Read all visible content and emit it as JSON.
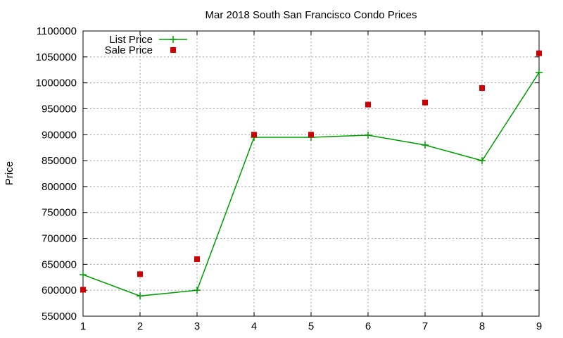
{
  "chart_data": {
    "type": "line",
    "title": "Mar 2018 South San Francisco Condo Prices",
    "xlabel": "",
    "ylabel": "Price",
    "xlim": [
      1,
      9
    ],
    "ylim": [
      550000,
      1100000
    ],
    "x_ticks": [
      "1",
      "2",
      "3",
      "4",
      "5",
      "6",
      "7",
      "8",
      "9"
    ],
    "y_ticks": [
      "550000",
      "600000",
      "650000",
      "700000",
      "750000",
      "800000",
      "850000",
      "900000",
      "950000",
      "1000000",
      "1050000",
      "1100000"
    ],
    "grid": true,
    "legend_position": "top-left",
    "series": [
      {
        "name": "List Price",
        "style": "lines+points",
        "marker": "plus",
        "color": "#009900",
        "x": [
          1,
          2,
          3,
          4,
          5,
          6,
          7,
          8,
          9
        ],
        "y": [
          630000,
          589000,
          600000,
          895000,
          895000,
          899000,
          880000,
          850000,
          1020000
        ]
      },
      {
        "name": "Sale Price",
        "style": "points",
        "marker": "square",
        "color": "#cc0000",
        "x": [
          1,
          2,
          3,
          4,
          5,
          6,
          7,
          8,
          9
        ],
        "y": [
          601000,
          631000,
          660000,
          900000,
          900000,
          958000,
          962000,
          990000,
          1057000
        ]
      }
    ]
  }
}
